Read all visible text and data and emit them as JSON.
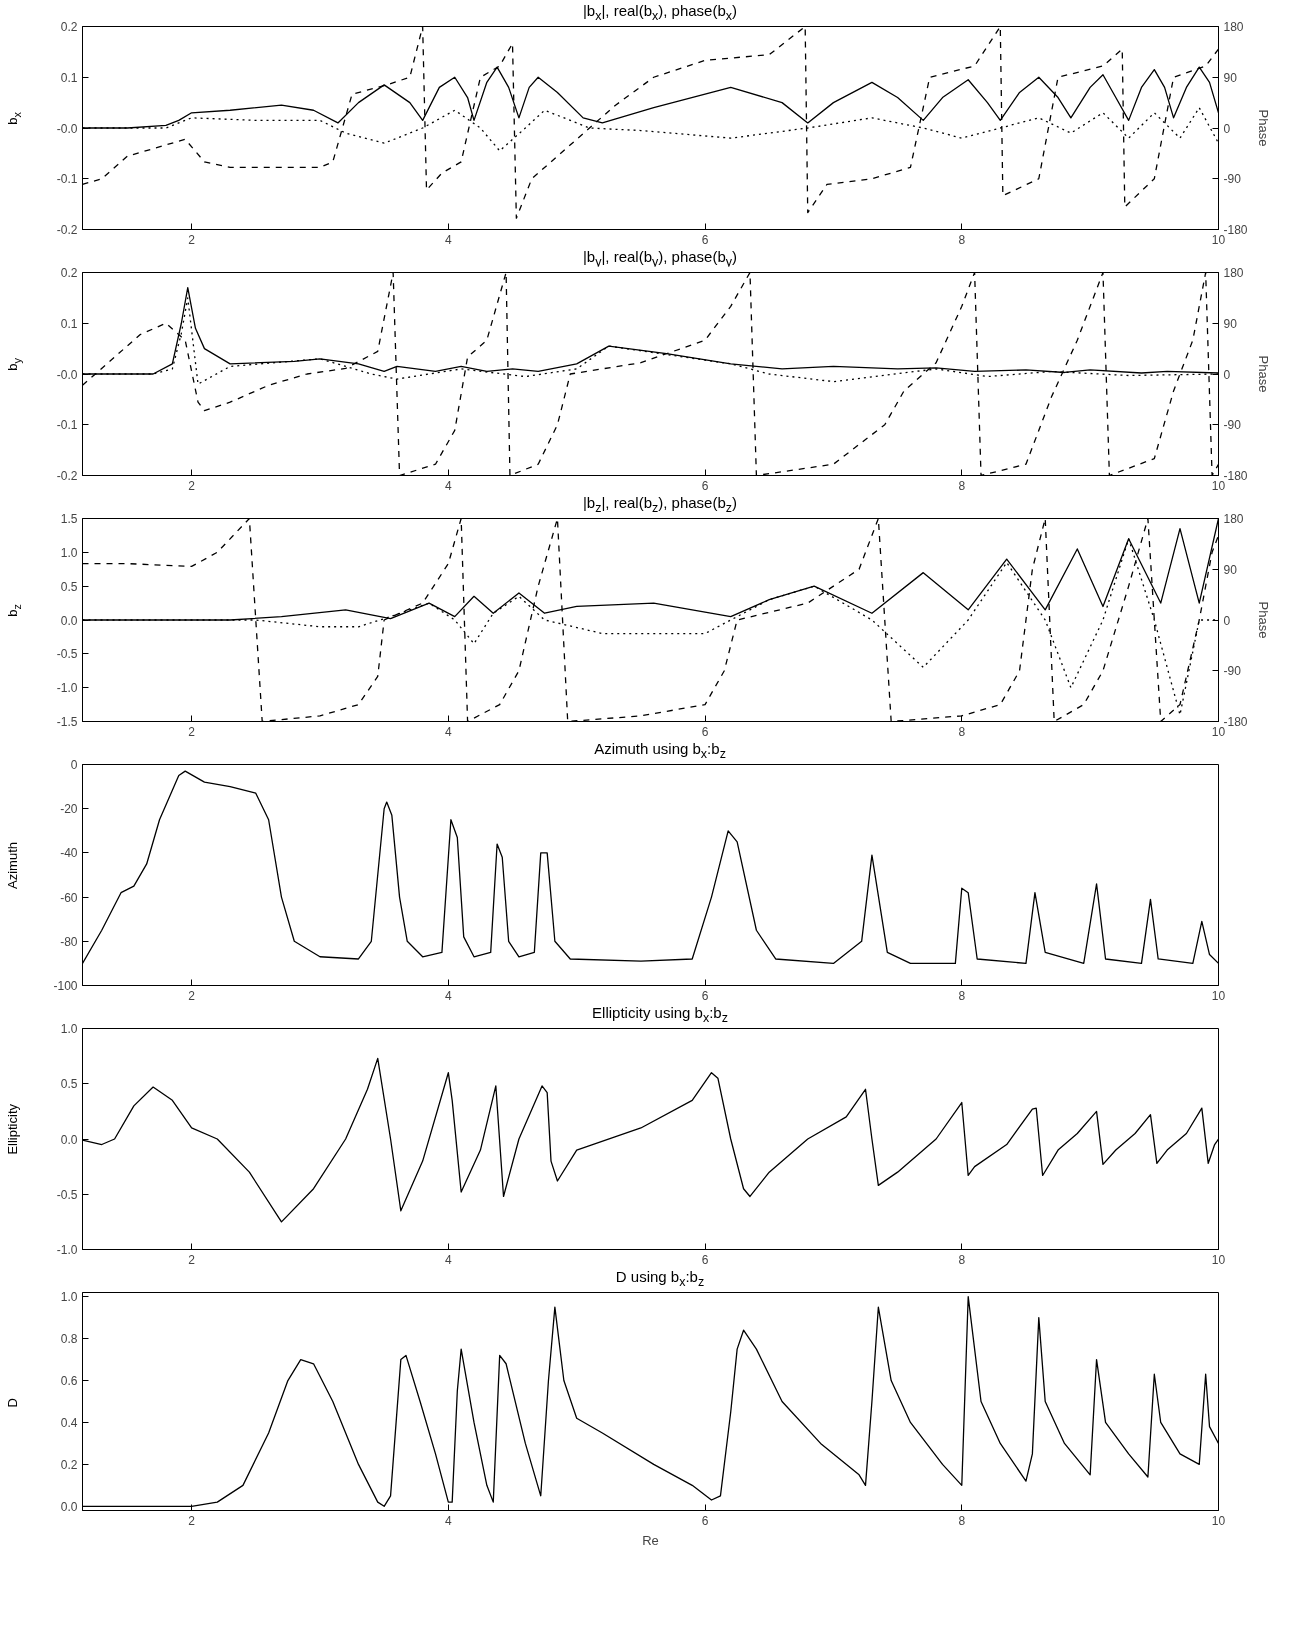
{
  "chart_data": [
    {
      "type": "line",
      "title": "|b$_{x}$|, real(b$_{x}$), phase(b$_{x}$)",
      "ylabel": "b$_{x}$",
      "y2label": "Phase",
      "xlim": [
        1.15,
        10
      ],
      "xticks": [
        2,
        4,
        6,
        8,
        10
      ],
      "ylim": [
        -0.2,
        0.2
      ],
      "yticks": [
        -0.2,
        -0.1,
        {
          "value": 0,
          "label": "-0.0"
        },
        0.1,
        0.2
      ],
      "y2lim": [
        -180,
        180
      ],
      "y2ticks": [
        -180,
        -90,
        0,
        90,
        180
      ],
      "series": [
        {
          "color": "#000000",
          "line_style": "solid",
          "x": [
            1.15,
            1.5,
            1.8,
            1.9,
            2.0,
            2.3,
            2.7,
            2.95,
            3.14,
            3.3,
            3.5,
            3.7,
            3.8,
            3.93,
            4.05,
            4.15,
            4.2,
            4.3,
            4.38,
            4.47,
            4.55,
            4.63,
            4.7,
            4.85,
            5.05,
            5.2,
            5.6,
            6.2,
            6.6,
            6.8,
            7.0,
            7.3,
            7.5,
            7.7,
            7.85,
            8.05,
            8.2,
            8.3,
            8.45,
            8.6,
            8.75,
            8.85,
            9.0,
            9.1,
            9.2,
            9.3,
            9.4,
            9.5,
            9.58,
            9.65,
            9.75,
            9.85,
            9.93,
            10.0
          ],
          "values": [
            0,
            0,
            0.005,
            0.015,
            0.03,
            0.035,
            0.045,
            0.035,
            0.01,
            0.05,
            0.085,
            0.05,
            0.015,
            0.08,
            0.1,
            0.06,
            0.015,
            0.09,
            0.12,
            0.08,
            0.02,
            0.08,
            0.1,
            0.07,
            0.02,
            0.01,
            0.04,
            0.08,
            0.05,
            0.01,
            0.05,
            0.09,
            0.06,
            0.015,
            0.06,
            0.095,
            0.05,
            0.015,
            0.07,
            0.1,
            0.06,
            0.02,
            0.08,
            0.105,
            0.06,
            0.015,
            0.08,
            0.115,
            0.08,
            0.02,
            0.08,
            0.12,
            0.09,
            0.03
          ]
        },
        {
          "color": "#000000",
          "line_style": "dotted",
          "x": [
            1.15,
            1.8,
            1.9,
            2.0,
            2.5,
            3.0,
            3.2,
            3.5,
            3.8,
            4.05,
            4.25,
            4.4,
            4.6,
            4.75,
            5.1,
            5.5,
            6.2,
            6.8,
            7.3,
            7.7,
            8.0,
            8.3,
            8.6,
            8.85,
            9.1,
            9.3,
            9.5,
            9.7,
            9.85,
            10.0
          ],
          "values": [
            0,
            0,
            0.01,
            0.02,
            0.015,
            0.015,
            -0.01,
            -0.03,
            0,
            0.035,
            0,
            -0.045,
            0,
            0.035,
            0,
            -0.005,
            -0.02,
            0,
            0.02,
            0,
            -0.02,
            0,
            0.02,
            -0.01,
            0.03,
            -0.02,
            0.03,
            -0.02,
            0.04,
            -0.03
          ]
        },
        {
          "axis": "y2",
          "color": "#000000",
          "line_style": "dashed",
          "x": [
            1.15,
            1.3,
            1.5,
            1.8,
            1.95,
            2.1,
            2.3,
            3.0,
            3.1,
            3.25,
            3.5,
            3.7,
            3.8,
            3.83,
            3.95,
            4.1,
            4.25,
            4.4,
            4.5,
            4.53,
            4.65,
            4.8,
            5.0,
            5.3,
            5.6,
            6.0,
            6.5,
            6.78,
            6.8,
            6.95,
            7.3,
            7.6,
            7.75,
            8.1,
            8.3,
            8.32,
            8.6,
            8.75,
            9.1,
            9.25,
            9.27,
            9.5,
            9.65,
            9.9,
            10.0
          ],
          "values": [
            -100,
            -90,
            -50,
            -30,
            -20,
            -60,
            -70,
            -70,
            -60,
            60,
            75,
            90,
            180,
            -110,
            -80,
            -60,
            90,
            110,
            150,
            -160,
            -90,
            -60,
            -20,
            40,
            90,
            120,
            130,
            180,
            -150,
            -100,
            -90,
            -70,
            90,
            110,
            180,
            -120,
            -90,
            90,
            110,
            140,
            -140,
            -90,
            90,
            110,
            140
          ]
        }
      ]
    },
    {
      "type": "line",
      "title": "|b$_{y}$|, real(b$_{y}$), phase(b$_{y}$)",
      "ylabel": "b$_{y}$",
      "y2label": "Phase",
      "xlim": [
        1.15,
        10
      ],
      "xticks": [
        2,
        4,
        6,
        8,
        10
      ],
      "ylim": [
        -0.2,
        0.2
      ],
      "yticks": [
        -0.2,
        -0.1,
        {
          "value": 0,
          "label": "-0.0"
        },
        0.1,
        0.2
      ],
      "y2lim": [
        -180,
        180
      ],
      "y2ticks": [
        -180,
        -90,
        0,
        90,
        180
      ],
      "series": [
        {
          "color": "#000000",
          "line_style": "solid",
          "x": [
            1.15,
            1.7,
            1.85,
            1.92,
            1.97,
            2.03,
            2.1,
            2.3,
            2.8,
            3.0,
            3.3,
            3.5,
            3.6,
            3.9,
            4.1,
            4.3,
            4.5,
            4.7,
            5.0,
            5.25,
            5.7,
            6.2,
            6.6,
            7.0,
            7.5,
            7.8,
            8.1,
            8.5,
            8.8,
            9.0,
            9.4,
            9.6,
            10.0
          ],
          "values": [
            0,
            0,
            0.02,
            0.1,
            0.17,
            0.09,
            0.05,
            0.02,
            0.025,
            0.03,
            0.02,
            0.005,
            0.015,
            0.005,
            0.015,
            0.005,
            0.01,
            0.005,
            0.02,
            0.055,
            0.04,
            0.02,
            0.01,
            0.015,
            0.01,
            0.012,
            0.005,
            0.008,
            0.003,
            0.008,
            0.002,
            0.005,
            0.002
          ]
        },
        {
          "color": "#000000",
          "line_style": "dotted",
          "x": [
            1.15,
            1.7,
            1.85,
            1.92,
            1.97,
            2.05,
            2.3,
            3.0,
            3.4,
            3.6,
            4.1,
            4.6,
            5.0,
            5.25,
            6.2,
            6.5,
            7.0,
            7.8,
            8.2,
            8.7,
            9.3,
            10.0
          ],
          "values": [
            0,
            0,
            0.01,
            0.08,
            0.15,
            -0.02,
            0.015,
            0.03,
            0,
            -0.01,
            0.01,
            -0.005,
            0.01,
            0.055,
            0.02,
            0,
            -0.015,
            0.01,
            -0.005,
            0.005,
            -0.003,
            0
          ]
        },
        {
          "axis": "y2",
          "color": "#000000",
          "line_style": "dashed",
          "x": [
            1.15,
            1.4,
            1.6,
            1.8,
            1.95,
            2.05,
            2.1,
            2.3,
            2.6,
            2.9,
            3.2,
            3.45,
            3.57,
            3.62,
            3.9,
            4.05,
            4.15,
            4.3,
            4.45,
            4.48,
            4.7,
            4.85,
            4.95,
            5.5,
            6.0,
            6.2,
            6.35,
            6.4,
            7.0,
            7.4,
            7.55,
            7.8,
            8.0,
            8.1,
            8.15,
            8.5,
            8.7,
            8.9,
            9.1,
            9.15,
            9.5,
            9.65,
            9.8,
            9.9,
            9.95,
            10.0
          ],
          "values": [
            -20,
            30,
            70,
            90,
            60,
            -50,
            -65,
            -50,
            -20,
            0,
            10,
            40,
            180,
            -180,
            -160,
            -100,
            30,
            60,
            180,
            -180,
            -160,
            -90,
            0,
            20,
            60,
            120,
            180,
            -180,
            -160,
            -90,
            -30,
            20,
            120,
            180,
            -180,
            -160,
            -40,
            60,
            180,
            -180,
            -150,
            -30,
            60,
            180,
            -180,
            -160
          ]
        }
      ]
    },
    {
      "type": "line",
      "title": "|b$_{z}$|, real(b$_{z}$), phase(b$_{z}$)",
      "ylabel": "b$_{z}$",
      "y2label": "Phase",
      "xlim": [
        1.15,
        10
      ],
      "xticks": [
        2,
        4,
        6,
        8,
        10
      ],
      "ylim": [
        -1.5,
        1.5
      ],
      "yticks": [
        -1.5,
        {
          "value": -1,
          "label": "-1.0"
        },
        -0.5,
        {
          "value": 0,
          "label": "0.0"
        },
        0.5,
        {
          "value": 1,
          "label": "1.0"
        },
        1.5
      ],
      "y2lim": [
        -180,
        180
      ],
      "y2ticks": [
        -180,
        -90,
        0,
        90,
        180
      ],
      "series": [
        {
          "color": "#000000",
          "line_style": "solid",
          "x": [
            1.15,
            2.3,
            2.7,
            3.2,
            3.55,
            3.85,
            4.05,
            4.2,
            4.35,
            4.55,
            4.75,
            5.0,
            5.6,
            6.2,
            6.5,
            6.85,
            7.3,
            7.7,
            8.05,
            8.35,
            8.65,
            8.9,
            9.1,
            9.3,
            9.55,
            9.7,
            9.85,
            10.0
          ],
          "values": [
            0,
            0,
            0.05,
            0.15,
            0.02,
            0.25,
            0.05,
            0.35,
            0.1,
            0.4,
            0.1,
            0.2,
            0.25,
            0.05,
            0.3,
            0.5,
            0.1,
            0.7,
            0.15,
            0.9,
            0.15,
            1.05,
            0.2,
            1.2,
            0.25,
            1.35,
            0.25,
            1.5
          ]
        },
        {
          "color": "#000000",
          "line_style": "dotted",
          "x": [
            1.15,
            2.5,
            3.0,
            3.3,
            3.55,
            3.85,
            4.05,
            4.2,
            4.35,
            4.55,
            4.75,
            5.2,
            6.0,
            6.2,
            6.5,
            6.85,
            7.3,
            7.7,
            8.05,
            8.35,
            8.65,
            8.85,
            9.1,
            9.3,
            9.5,
            9.7,
            9.85,
            10.0
          ],
          "values": [
            0,
            0,
            -0.1,
            -0.1,
            0.05,
            0.25,
            0,
            -0.35,
            0.1,
            0.35,
            0,
            -0.2,
            -0.2,
            0,
            0.3,
            0.5,
            0,
            -0.7,
            0,
            0.85,
            0,
            -1.0,
            0,
            1.2,
            0,
            -1.4,
            0,
            0
          ]
        },
        {
          "axis": "y2",
          "color": "#000000",
          "line_style": "dashed",
          "x": [
            1.15,
            1.5,
            2.0,
            2.2,
            2.45,
            2.55,
            3.0,
            3.3,
            3.45,
            3.5,
            3.8,
            4.0,
            4.1,
            4.15,
            4.4,
            4.55,
            4.7,
            4.85,
            4.93,
            5.5,
            6.0,
            6.15,
            6.25,
            6.8,
            7.2,
            7.35,
            7.45,
            8.0,
            8.3,
            8.45,
            8.55,
            8.65,
            8.72,
            8.95,
            9.1,
            9.3,
            9.45,
            9.55,
            9.7,
            9.85,
            9.95,
            10.0
          ],
          "values": [
            100,
            100,
            95,
            120,
            180,
            -180,
            -170,
            -150,
            -100,
            0,
            30,
            100,
            180,
            -180,
            -150,
            -90,
            60,
            180,
            -180,
            -170,
            -150,
            -90,
            0,
            30,
            90,
            180,
            -180,
            -170,
            -150,
            -90,
            90,
            180,
            -180,
            -150,
            -90,
            60,
            180,
            -180,
            -150,
            0,
            120,
            150
          ]
        }
      ]
    },
    {
      "type": "line",
      "title": "Azimuth using b$_{x}$:b$_{z}$",
      "ylabel": "Azimuth",
      "xlim": [
        1.15,
        10
      ],
      "xticks": [
        2,
        4,
        6,
        8,
        10
      ],
      "ylim": [
        -100,
        0
      ],
      "yticks": [
        -100,
        -80,
        -60,
        -40,
        -20,
        0
      ],
      "series": [
        {
          "color": "#000000",
          "line_style": "solid",
          "x": [
            1.15,
            1.3,
            1.45,
            1.55,
            1.65,
            1.75,
            1.9,
            1.95,
            2.1,
            2.3,
            2.5,
            2.6,
            2.7,
            2.8,
            3.0,
            3.3,
            3.4,
            3.5,
            3.52,
            3.56,
            3.62,
            3.68,
            3.8,
            3.95,
            4.02,
            4.07,
            4.12,
            4.2,
            4.33,
            4.38,
            4.42,
            4.47,
            4.55,
            4.67,
            4.72,
            4.77,
            4.83,
            4.95,
            5.5,
            5.9,
            6.05,
            6.18,
            6.25,
            6.4,
            6.55,
            7.0,
            7.22,
            7.3,
            7.42,
            7.6,
            7.95,
            8.0,
            8.05,
            8.12,
            8.5,
            8.57,
            8.65,
            8.95,
            9.05,
            9.12,
            9.4,
            9.47,
            9.53,
            9.8,
            9.87,
            9.93,
            10.0
          ],
          "values": [
            -90,
            -75,
            -58,
            -55,
            -45,
            -25,
            -5,
            -3,
            -8,
            -10,
            -13,
            -25,
            -60,
            -80,
            -87,
            -88,
            -80,
            -20,
            -17,
            -23,
            -60,
            -80,
            -87,
            -85,
            -25,
            -33,
            -78,
            -87,
            -85,
            -36,
            -42,
            -80,
            -87,
            -85,
            -40,
            -40,
            -80,
            -88,
            -89,
            -88,
            -60,
            -30,
            -35,
            -75,
            -88,
            -90,
            -80,
            -41,
            -85,
            -90,
            -90,
            -56,
            -58,
            -88,
            -90,
            -58,
            -85,
            -90,
            -54,
            -88,
            -90,
            -61,
            -88,
            -90,
            -71,
            -86,
            -90
          ]
        }
      ]
    },
    {
      "type": "line",
      "title": "Ellipticity using b$_{x}$:b$_{z}$",
      "ylabel": "Ellipticity",
      "xlim": [
        1.15,
        10
      ],
      "xticks": [
        2,
        4,
        6,
        8,
        10
      ],
      "ylim": [
        -1,
        1
      ],
      "yticks": [
        {
          "value": -1,
          "label": "-1.0"
        },
        -0.5,
        {
          "value": 0,
          "label": "0.0"
        },
        0.5,
        {
          "value": 1,
          "label": "1.0"
        }
      ],
      "series": [
        {
          "color": "#000000",
          "line_style": "solid",
          "x": [
            1.15,
            1.3,
            1.4,
            1.55,
            1.7,
            1.85,
            2.0,
            2.2,
            2.45,
            2.7,
            2.95,
            3.2,
            3.37,
            3.45,
            3.55,
            3.63,
            3.8,
            4.0,
            4.03,
            4.1,
            4.25,
            4.37,
            4.43,
            4.55,
            4.73,
            4.77,
            4.8,
            4.85,
            5.0,
            5.5,
            5.9,
            6.05,
            6.1,
            6.2,
            6.3,
            6.35,
            6.5,
            6.8,
            7.1,
            7.25,
            7.3,
            7.35,
            7.5,
            7.8,
            8.0,
            8.05,
            8.1,
            8.35,
            8.55,
            8.58,
            8.63,
            8.75,
            8.9,
            9.05,
            9.1,
            9.2,
            9.35,
            9.47,
            9.52,
            9.6,
            9.75,
            9.87,
            9.92,
            9.97,
            10.0
          ],
          "values": [
            -0.01,
            -0.05,
            0,
            0.3,
            0.47,
            0.35,
            0.1,
            0,
            -0.3,
            -0.75,
            -0.45,
            0,
            0.45,
            0.73,
            0,
            -0.65,
            -0.2,
            0.6,
            0.35,
            -0.48,
            -0.1,
            0.48,
            -0.52,
            0,
            0.48,
            0.42,
            -0.2,
            -0.38,
            -0.1,
            0.1,
            0.35,
            0.6,
            0.55,
            0,
            -0.45,
            -0.52,
            -0.3,
            0,
            0.2,
            0.45,
            0,
            -0.42,
            -0.3,
            0,
            0.33,
            -0.33,
            -0.25,
            -0.05,
            0.27,
            0.28,
            -0.33,
            -0.1,
            0.05,
            0.25,
            -0.23,
            -0.1,
            0.05,
            0.22,
            -0.22,
            -0.1,
            0.05,
            0.28,
            -0.22,
            -0.05,
            0
          ]
        }
      ]
    },
    {
      "type": "line",
      "title": "D using b$_{x}$:b$_{z}$",
      "ylabel": "D",
      "xlabel": "Re",
      "xlim": [
        1.15,
        10
      ],
      "xticks": [
        2,
        4,
        6,
        8,
        10
      ],
      "ylim": [
        -0.02,
        1.02
      ],
      "yticks": [
        {
          "value": 0,
          "label": "0.0"
        },
        0.2,
        0.4,
        0.6,
        0.8,
        {
          "value": 1,
          "label": "1.0"
        }
      ],
      "series": [
        {
          "color": "#000000",
          "line_style": "solid",
          "x": [
            1.15,
            2.0,
            2.2,
            2.4,
            2.6,
            2.75,
            2.85,
            2.95,
            3.1,
            3.3,
            3.45,
            3.5,
            3.55,
            3.63,
            3.67,
            3.78,
            3.9,
            4.0,
            4.03,
            4.07,
            4.1,
            4.2,
            4.3,
            4.35,
            4.4,
            4.45,
            4.6,
            4.72,
            4.78,
            4.83,
            4.9,
            5.0,
            5.2,
            5.6,
            5.9,
            6.05,
            6.12,
            6.2,
            6.25,
            6.3,
            6.4,
            6.6,
            6.9,
            7.2,
            7.25,
            7.3,
            7.35,
            7.45,
            7.6,
            7.85,
            8.0,
            8.05,
            8.15,
            8.3,
            8.5,
            8.55,
            8.6,
            8.65,
            8.8,
            9.0,
            9.05,
            9.12,
            9.3,
            9.45,
            9.5,
            9.55,
            9.7,
            9.85,
            9.9,
            9.93,
            10.0
          ],
          "values": [
            0,
            0,
            0.02,
            0.1,
            0.35,
            0.6,
            0.7,
            0.68,
            0.5,
            0.2,
            0.02,
            0,
            0.05,
            0.7,
            0.72,
            0.5,
            0.25,
            0.02,
            0.02,
            0.55,
            0.75,
            0.4,
            0.1,
            0.02,
            0.72,
            0.68,
            0.3,
            0.05,
            0.6,
            0.95,
            0.6,
            0.42,
            0.35,
            0.2,
            0.1,
            0.03,
            0.05,
            0.45,
            0.75,
            0.84,
            0.75,
            0.5,
            0.3,
            0.15,
            0.1,
            0.5,
            0.95,
            0.6,
            0.4,
            0.2,
            0.1,
            1.0,
            0.5,
            0.3,
            0.12,
            0.25,
            0.9,
            0.5,
            0.3,
            0.15,
            0.7,
            0.4,
            0.25,
            0.14,
            0.63,
            0.4,
            0.25,
            0.2,
            0.63,
            0.38,
            0.3
          ]
        }
      ]
    }
  ]
}
